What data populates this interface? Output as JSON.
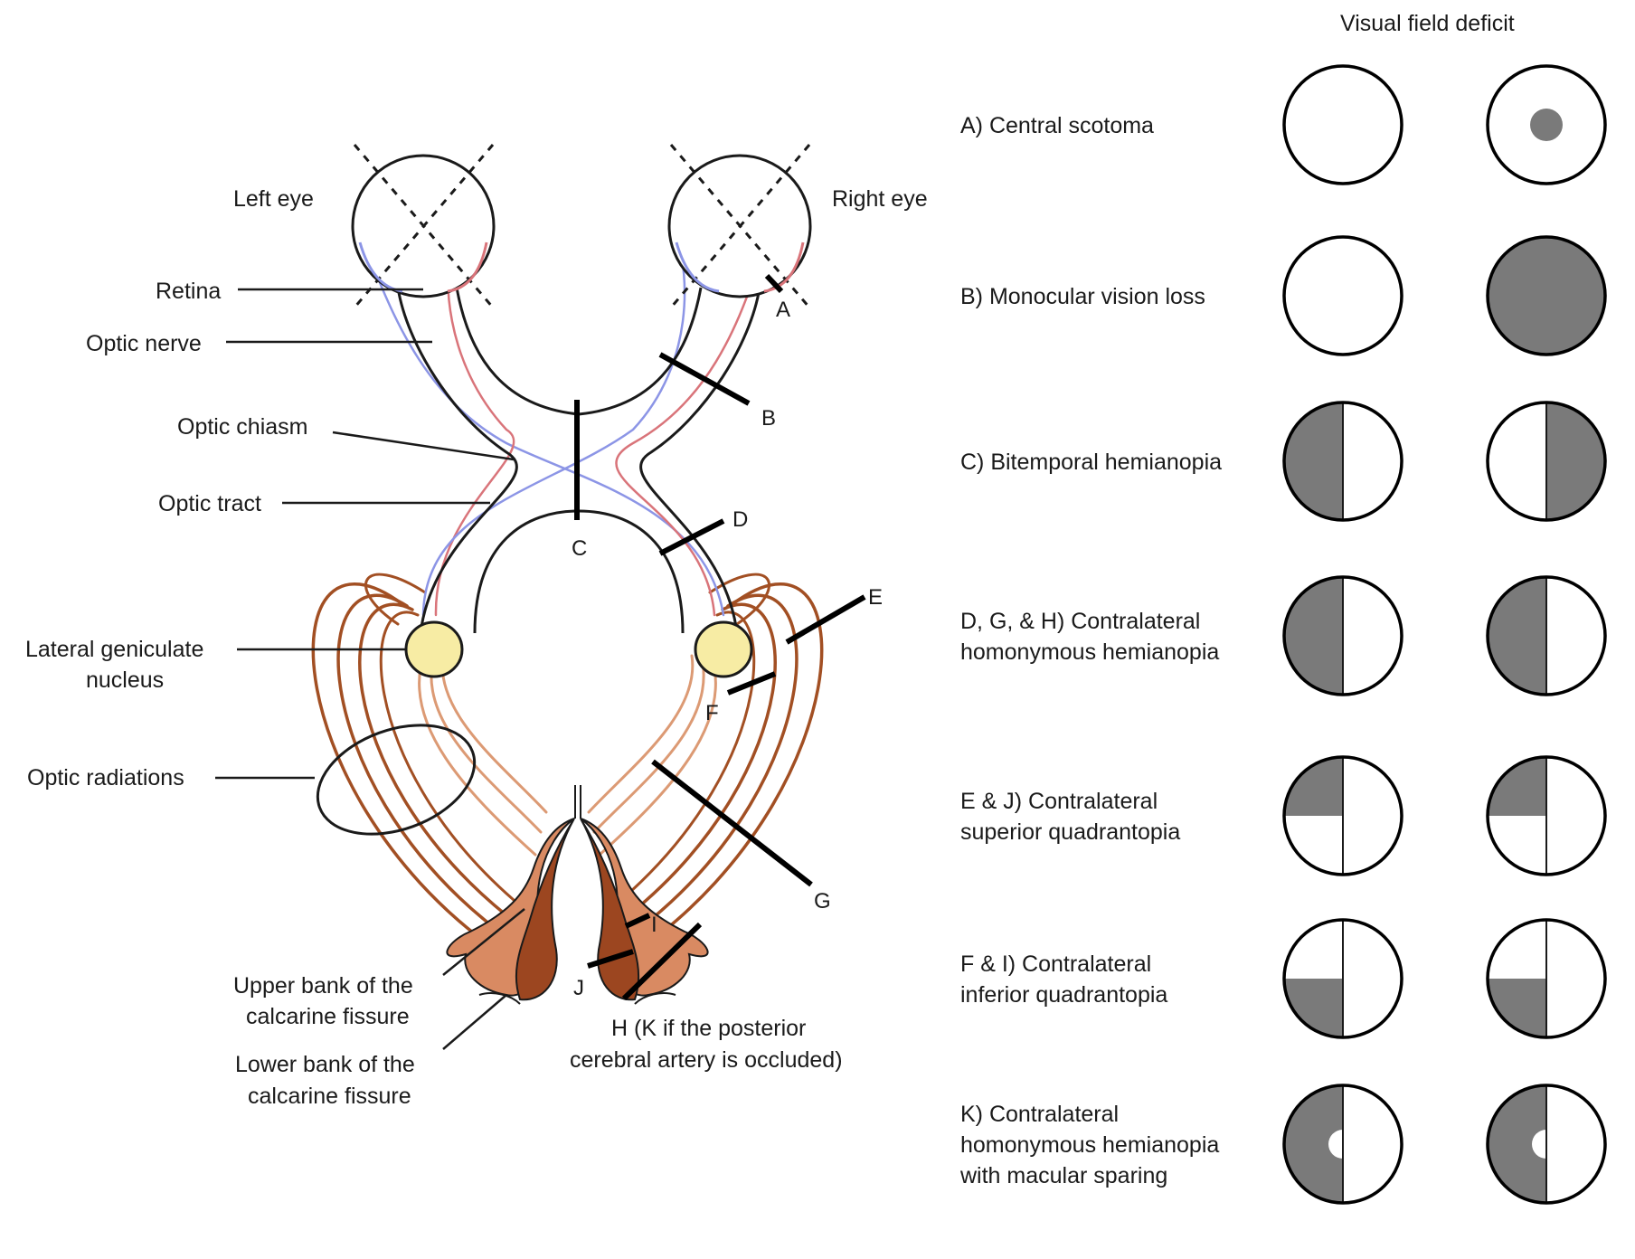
{
  "header": "Visual field deficit",
  "anatomy": {
    "left_eye": "Left eye",
    "right_eye": "Right eye",
    "retina": "Retina",
    "optic_nerve": "Optic nerve",
    "optic_chiasm": "Optic chiasm",
    "optic_tract": "Optic tract",
    "lgn_line1": "Lateral geniculate",
    "lgn_line2": "nucleus",
    "optic_radiations": "Optic radiations",
    "upper_bank_line1": "Upper bank of the",
    "upper_bank_line2": "calcarine fissure",
    "lower_bank_line1": "Lower bank of the",
    "lower_bank_line2": "calcarine fissure",
    "h_note_line1": "H (K if the posterior",
    "h_note_line2": "cerebral artery is occluded)"
  },
  "lesion_letters": {
    "A": "A",
    "B": "B",
    "C": "C",
    "D": "D",
    "E": "E",
    "F": "F",
    "G": "G",
    "I": "I",
    "J": "J"
  },
  "colors": {
    "temporal_fiber": "#d9747a",
    "nasal_fiber": "#8c95e6",
    "radiation_dark": "#a24f23",
    "radiation_light": "#dc9a74",
    "lgn_fill": "#f7eca4",
    "deficit_fill": "#7a7a7a",
    "cortex_dark": "#9c4620",
    "cortex_light": "#d98a62"
  },
  "deficits": [
    {
      "lines": [
        "A) Central scotoma"
      ],
      "left": "none",
      "right": "central"
    },
    {
      "lines": [
        "B) Monocular vision loss"
      ],
      "left": "none",
      "right": "full"
    },
    {
      "lines": [
        "C) Bitemporal hemianopia"
      ],
      "left": "left-half",
      "right": "right-half"
    },
    {
      "lines": [
        "D, G, & H) Contralateral",
        "homonymous hemianopia"
      ],
      "left": "left-half",
      "right": "left-half"
    },
    {
      "lines": [
        "E & J) Contralateral",
        "superior quadrantopia"
      ],
      "left": "upper-left",
      "right": "upper-left"
    },
    {
      "lines": [
        "F & I) Contralateral",
        "inferior quadrantopia"
      ],
      "left": "lower-left",
      "right": "lower-left"
    },
    {
      "lines": [
        "K) Contralateral",
        "homonymous hemianopia",
        "with macular sparing"
      ],
      "left": "left-half-macular",
      "right": "left-half-macular"
    }
  ]
}
